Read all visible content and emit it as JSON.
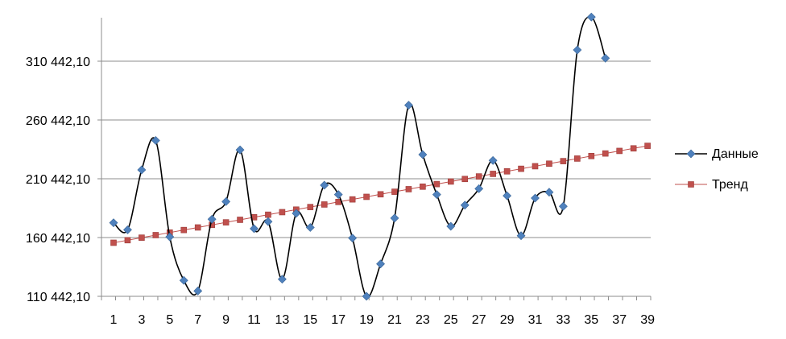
{
  "chart_data": {
    "type": "line",
    "title": "",
    "xlabel": "",
    "ylabel": "",
    "x_tick_labels": [
      "1",
      "3",
      "5",
      "7",
      "9",
      "11",
      "13",
      "15",
      "17",
      "19",
      "21",
      "23",
      "25",
      "27",
      "29",
      "31",
      "33",
      "35",
      "37",
      "39"
    ],
    "y_tick_labels": [
      "110 442,10",
      "160 442,10",
      "210 442,10",
      "260 442,10",
      "310 442,10"
    ],
    "y_tick_values": [
      110442.1,
      160442.1,
      210442.1,
      260442.1,
      310442.1
    ],
    "xlim": [
      1,
      39
    ],
    "ylim": [
      110442.1,
      347000
    ],
    "grid": "horizontal",
    "legend_position": "right",
    "series": [
      {
        "name": "Данные",
        "color": "#000000",
        "marker_color": "#4F81BD",
        "marker": "diamond",
        "smooth": true,
        "x": [
          1,
          2,
          3,
          4,
          5,
          6,
          7,
          8,
          9,
          10,
          11,
          12,
          13,
          14,
          15,
          16,
          17,
          18,
          19,
          20,
          21,
          22,
          23,
          24,
          25,
          26,
          27,
          28,
          29,
          30,
          31,
          32,
          33,
          34,
          35,
          36
        ],
        "values": [
          173000,
          167000,
          218000,
          243000,
          161000,
          124000,
          115000,
          176000,
          191000,
          235000,
          168000,
          174000,
          125000,
          181000,
          169000,
          205000,
          197000,
          160000,
          110442,
          138000,
          177000,
          273000,
          231000,
          197000,
          170000,
          188000,
          202000,
          226000,
          196000,
          162000,
          194000,
          199000,
          187000,
          320000,
          348000,
          313000
        ]
      },
      {
        "name": "Тренд",
        "color": "#C0504D",
        "marker_color": "#C0504D",
        "marker": "square",
        "smooth": false,
        "x": [
          1,
          2,
          3,
          4,
          5,
          6,
          7,
          8,
          9,
          10,
          11,
          12,
          13,
          14,
          15,
          16,
          17,
          18,
          19,
          20,
          21,
          22,
          23,
          24,
          25,
          26,
          27,
          28,
          29,
          30,
          31,
          32,
          33,
          34,
          35,
          36,
          37,
          38,
          39
        ],
        "values": [
          156000,
          158170,
          160340,
          162510,
          164680,
          166850,
          169020,
          171190,
          173360,
          175530,
          177700,
          179870,
          182040,
          184210,
          186380,
          188550,
          190720,
          192890,
          195060,
          197230,
          199400,
          201570,
          203740,
          205910,
          208080,
          210250,
          212420,
          214590,
          216760,
          218930,
          221100,
          223270,
          225440,
          227610,
          229780,
          231950,
          234120,
          236290,
          238460
        ]
      }
    ]
  }
}
